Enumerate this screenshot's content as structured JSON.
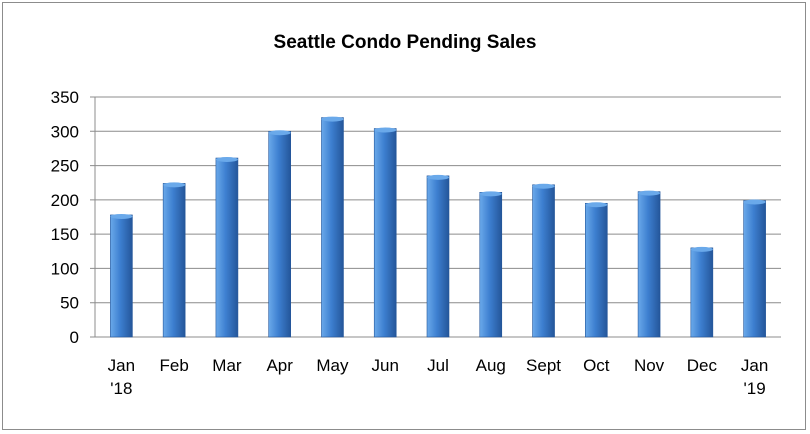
{
  "chart_data": {
    "type": "bar",
    "title": "Seattle Condo Pending Sales",
    "categories": [
      [
        "Jan",
        "'18"
      ],
      [
        "Feb"
      ],
      [
        "Mar"
      ],
      [
        "Apr"
      ],
      [
        "May"
      ],
      [
        "Jun"
      ],
      [
        "Jul"
      ],
      [
        "Aug"
      ],
      [
        "Sept"
      ],
      [
        "Oct"
      ],
      [
        "Nov"
      ],
      [
        "Dec"
      ],
      [
        "Jan",
        "'19"
      ]
    ],
    "values": [
      178,
      224,
      261,
      300,
      320,
      304,
      235,
      211,
      222,
      195,
      212,
      130,
      199
    ],
    "ylim": [
      0,
      350
    ],
    "yticks": [
      "0",
      "50",
      "100",
      "150",
      "200",
      "250",
      "300",
      "350"
    ],
    "xlabel": "",
    "ylabel": "",
    "grid": true,
    "legend": "none",
    "colors": {
      "bar_light": "#6aa9ea",
      "bar_mid": "#3d7fd0",
      "bar_dark": "#24569a",
      "grid": "#8c8c8c"
    }
  }
}
